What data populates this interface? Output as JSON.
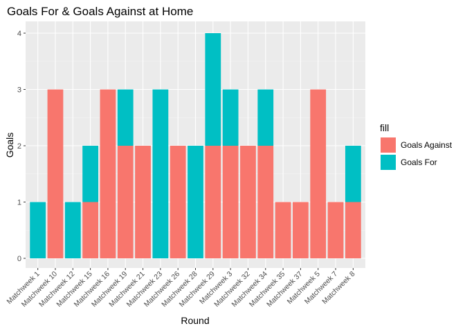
{
  "chart_data": {
    "type": "bar",
    "stacked": true,
    "title": "Goals For & Goals Against at Home",
    "xlabel": "Round",
    "ylabel": "Goals",
    "ylim": [
      0,
      4.2
    ],
    "yticks": [
      0,
      1,
      2,
      3,
      4
    ],
    "grid": true,
    "legend_position": "right",
    "categories": [
      "Matchweek 1",
      "Matchweek 10",
      "Matchweek 12",
      "Matchweek 15",
      "Matchweek 16",
      "Matchweek 19",
      "Matchweek 21",
      "Matchweek 23",
      "Matchweek 26",
      "Matchweek 28",
      "Matchweek 29",
      "Matchweek 3",
      "Matchweek 32",
      "Matchweek 34",
      "Matchweek 35",
      "Matchweek 37",
      "Matchweek 5",
      "Matchweek 7",
      "Matchweek 8"
    ],
    "legend_title": "fill",
    "series": [
      {
        "name": "Goals Against",
        "color": "#F8766D",
        "values": [
          0,
          3,
          0,
          1,
          3,
          2,
          2,
          0,
          2,
          0,
          2,
          2,
          2,
          2,
          1,
          1,
          3,
          1,
          1
        ]
      },
      {
        "name": "Goals For",
        "color": "#00BFC4",
        "values": [
          1,
          0,
          1,
          1,
          0,
          1,
          0,
          3,
          0,
          2,
          2,
          1,
          0,
          1,
          0,
          0,
          0,
          0,
          1
        ]
      }
    ]
  }
}
